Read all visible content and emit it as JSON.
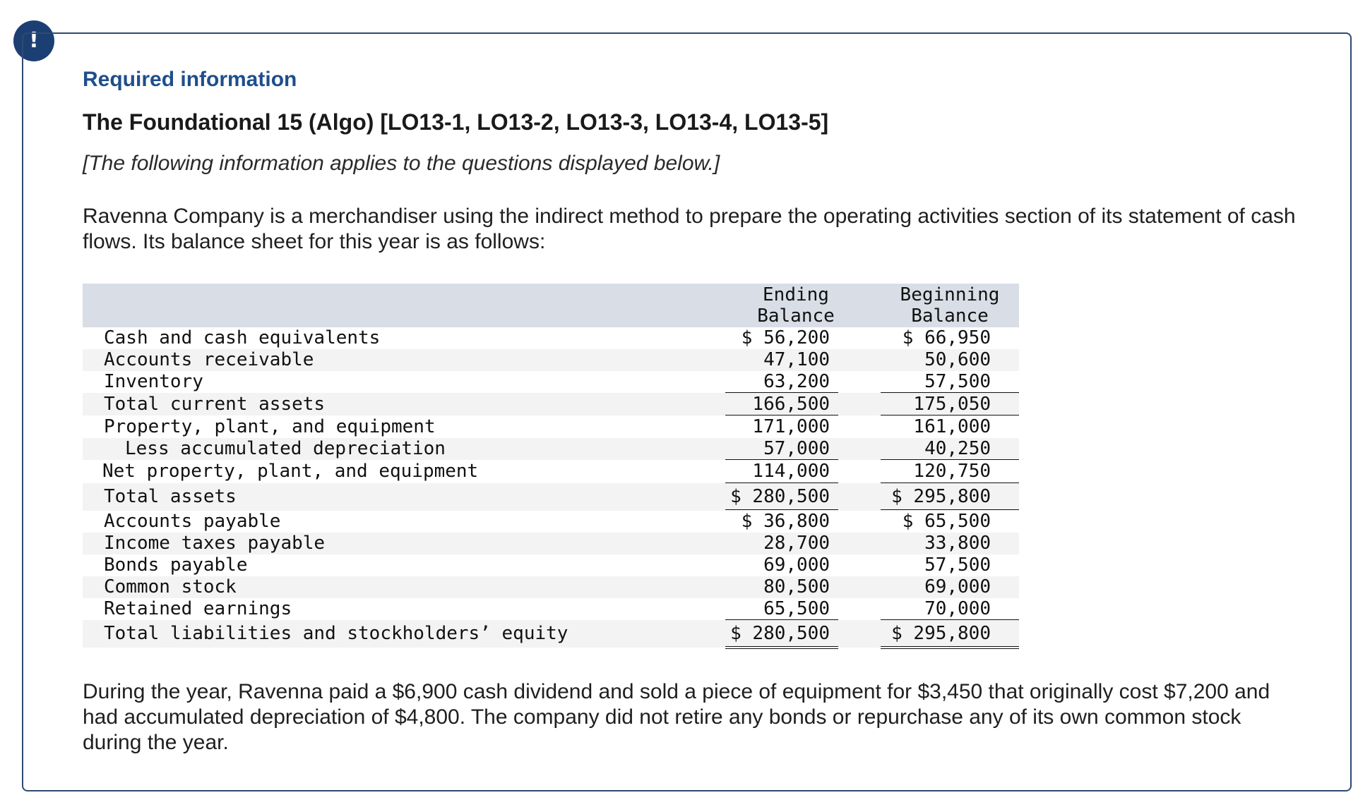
{
  "alert_icon_symbol": "!",
  "required_label": "Required information",
  "title": "The Foundational 15 (Algo) [LO13-1, LO13-2, LO13-3, LO13-4, LO13-5]",
  "subtitle": "[The following information applies to the questions displayed below.]",
  "intro": "Ravenna Company is a merchandiser using the indirect method to prepare the operating activities section of its statement of cash flows. Its balance sheet for this year is as follows:",
  "balance_sheet": {
    "col_ending": "Ending\nBalance",
    "col_beginning": "Beginning\nBalance",
    "rows": [
      {
        "label": "Cash and cash equivalents",
        "ending": "$ 56,200",
        "beginning": "$ 66,950"
      },
      {
        "label": "Accounts receivable",
        "ending": "47,100",
        "beginning": "50,600"
      },
      {
        "label": "Inventory",
        "ending": "63,200",
        "beginning": "57,500"
      },
      {
        "label": "Total current assets",
        "ending": "166,500",
        "beginning": "175,050"
      },
      {
        "label": "Property, plant, and equipment",
        "ending": "171,000",
        "beginning": "161,000"
      },
      {
        "label": "Less accumulated depreciation",
        "ending": "57,000",
        "beginning": "40,250"
      },
      {
        "label": "Net property, plant, and equipment",
        "ending": "114,000",
        "beginning": "120,750"
      },
      {
        "label": "Total assets",
        "ending": "$ 280,500",
        "beginning": "$ 295,800"
      },
      {
        "label": "Accounts payable",
        "ending": "$ 36,800",
        "beginning": "$ 65,500"
      },
      {
        "label": "Income taxes payable",
        "ending": "28,700",
        "beginning": "33,800"
      },
      {
        "label": "Bonds payable",
        "ending": "69,000",
        "beginning": "57,500"
      },
      {
        "label": "Common stock",
        "ending": "80,500",
        "beginning": "69,000"
      },
      {
        "label": "Retained earnings",
        "ending": "65,500",
        "beginning": "70,000"
      },
      {
        "label": "Total liabilities and stockholders’ equity",
        "ending": "$ 280,500",
        "beginning": "$ 295,800"
      }
    ]
  },
  "footer": "During the year, Ravenna paid a $6,900 cash dividend and sold a piece of equipment for $3,450 that originally cost $7,200 and had accumulated depreciation of $4,800. The company did not retire any bonds or repurchase any of its own common stock during the year."
}
